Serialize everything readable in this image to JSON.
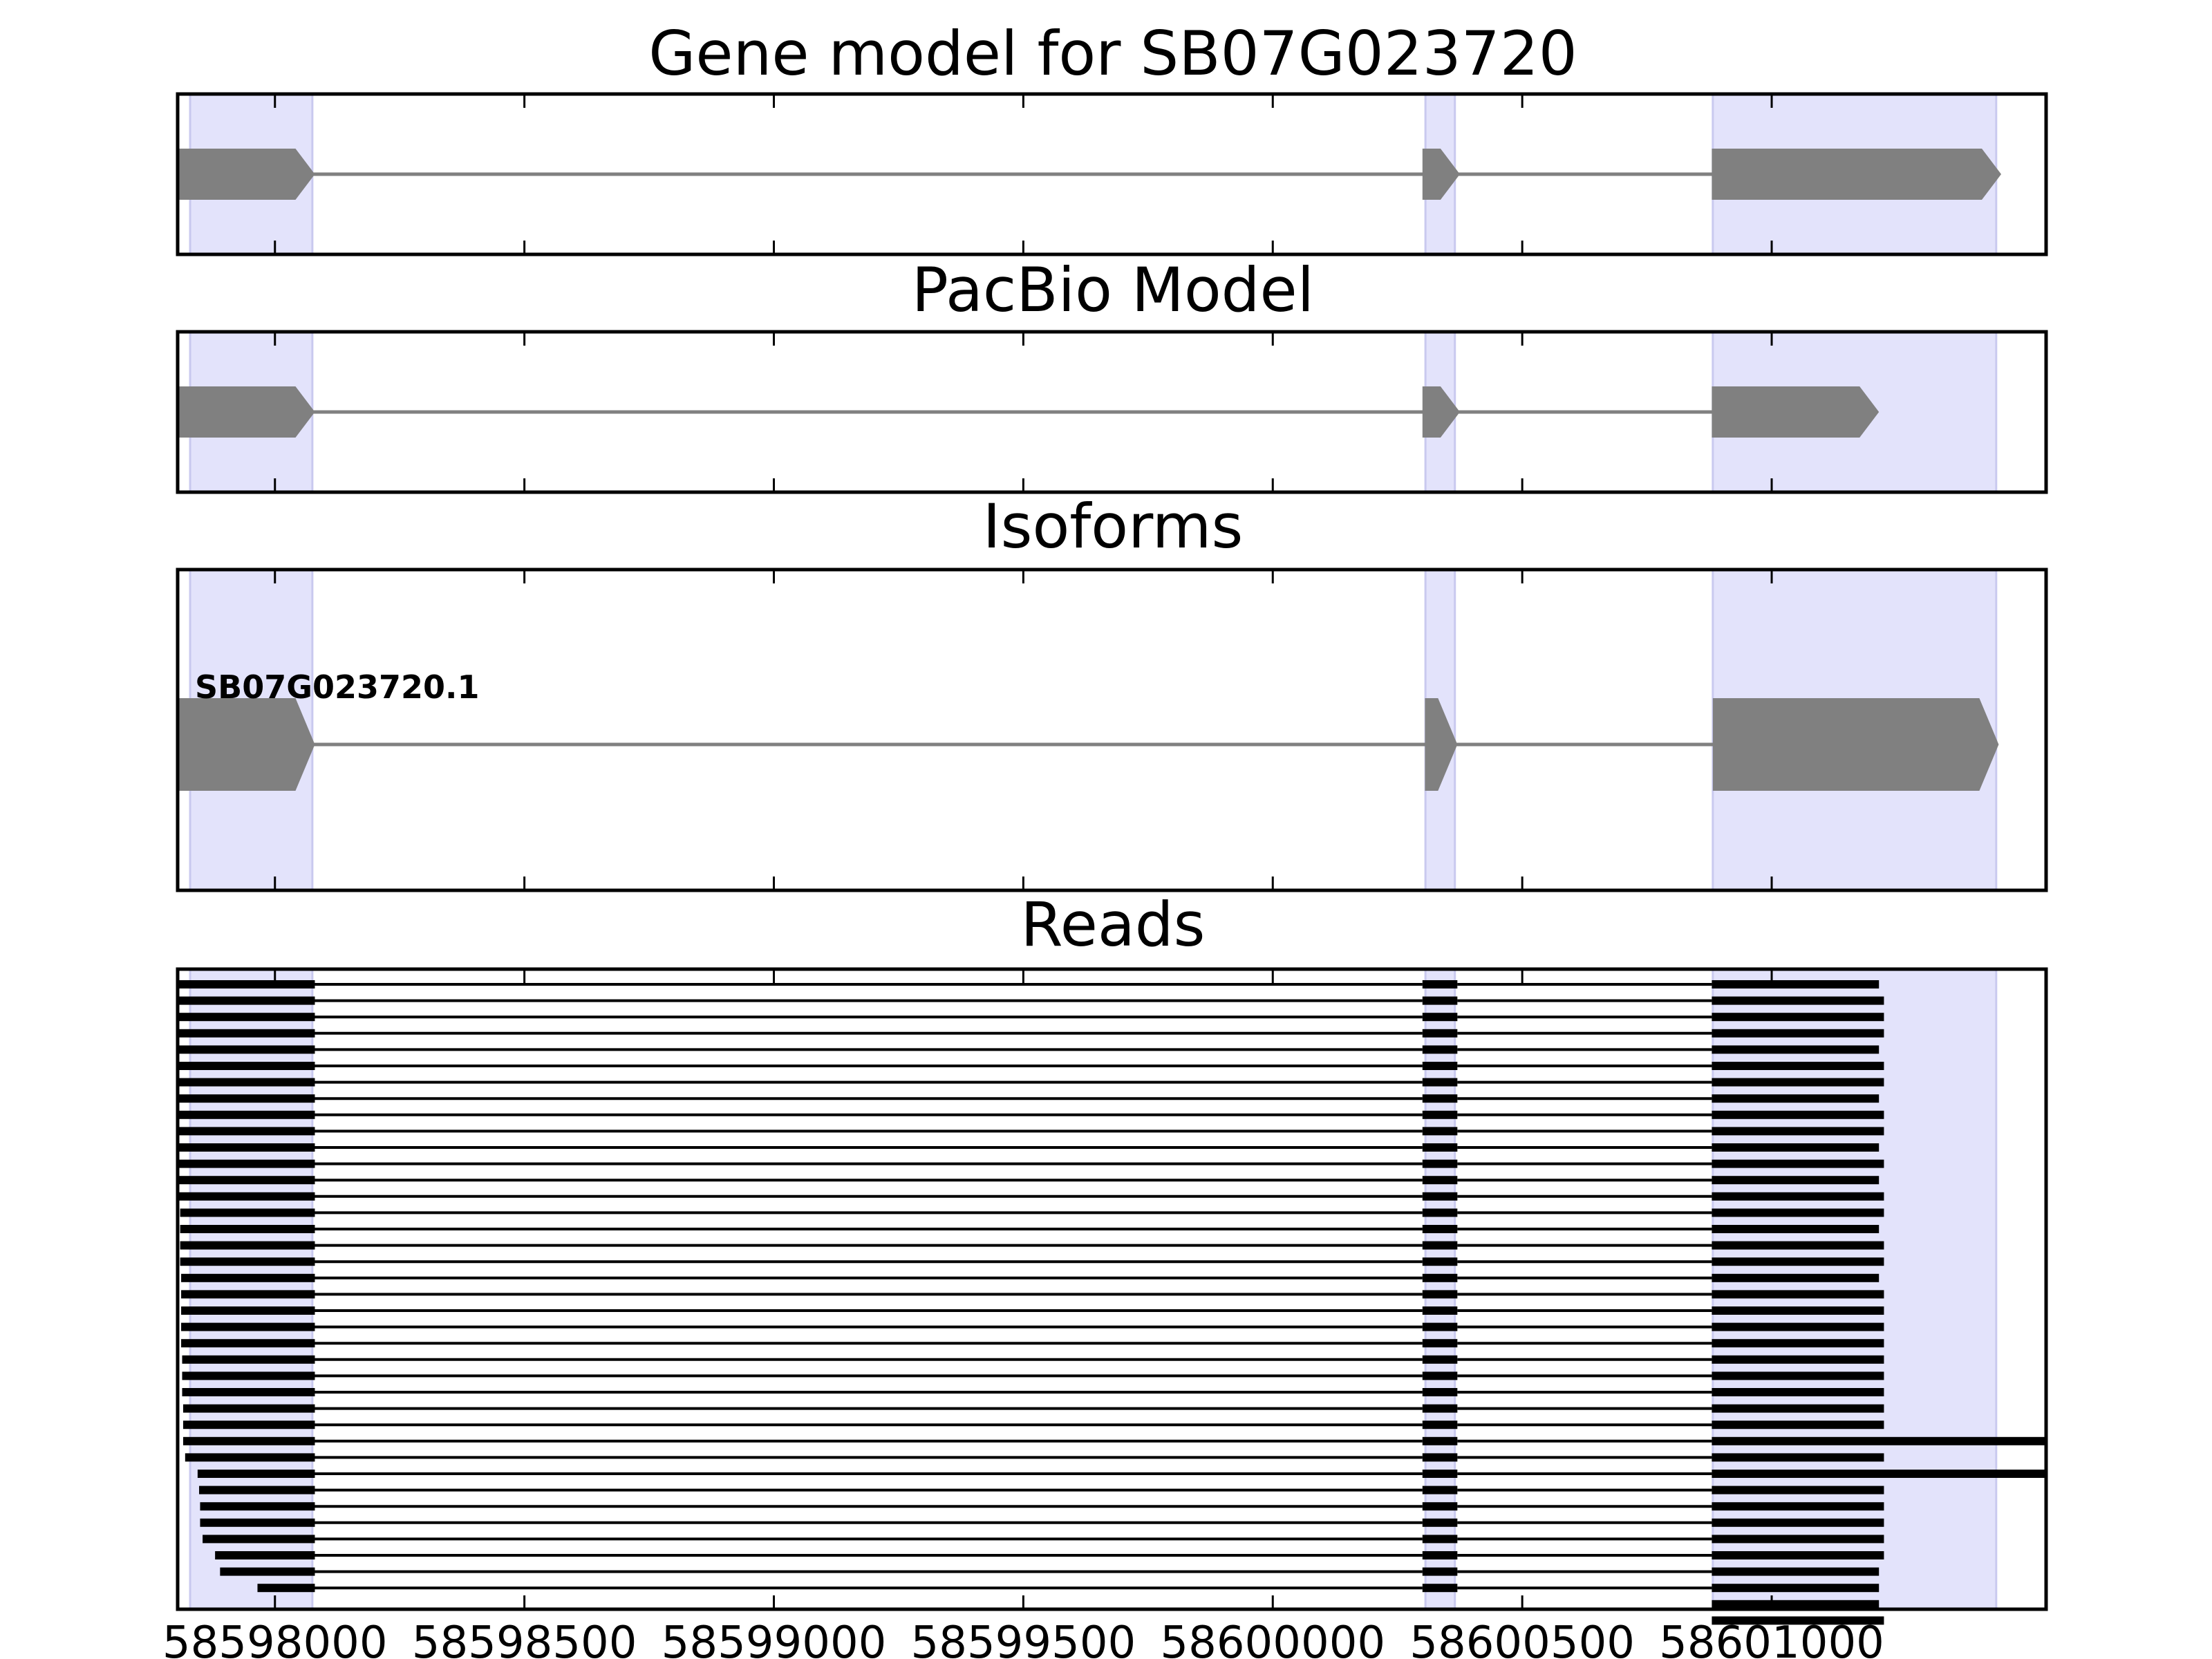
{
  "chart_data": [
    {
      "type": "gene-track",
      "title": "Gene model for SB07G023720",
      "xlim": [
        58597805,
        58601550
      ],
      "highlight_regions": [
        [
          58597830,
          58598075
        ],
        [
          58600306,
          58600365
        ],
        [
          58600882,
          58601450
        ]
      ],
      "features": [
        {
          "exons": [
            [
              58597805,
              58598080
            ],
            [
              58600300,
              58600375
            ],
            [
              58600880,
              58601460
            ]
          ],
          "strand": "+"
        }
      ]
    },
    {
      "type": "gene-track",
      "title": "PacBio Model",
      "xlim": [
        58597805,
        58601550
      ],
      "highlight_regions": [
        [
          58597830,
          58598075
        ],
        [
          58600306,
          58600365
        ],
        [
          58600882,
          58601450
        ]
      ],
      "features": [
        {
          "exons": [
            [
              58597775,
              58598080
            ],
            [
              58600300,
              58600375
            ],
            [
              58600880,
              58601215
            ]
          ],
          "strand": "+"
        }
      ]
    },
    {
      "type": "gene-track",
      "title": "Isoforms",
      "xlim": [
        58597805,
        58601550
      ],
      "highlight_regions": [
        [
          58597830,
          58598075
        ],
        [
          58600306,
          58600365
        ],
        [
          58600882,
          58601450
        ]
      ],
      "features": [
        {
          "label": "SB07G023720.1",
          "exons": [
            [
              58597775,
              58598080
            ],
            [
              58600305,
              58600370
            ],
            [
              58600882,
              58601455
            ]
          ],
          "strand": "+"
        }
      ]
    },
    {
      "type": "reads",
      "title": "Reads",
      "xlabel": "",
      "xlim": [
        58597805,
        58601550
      ],
      "highlight_regions": [
        [
          58597830,
          58598075
        ],
        [
          58600306,
          58600365
        ],
        [
          58600882,
          58601450
        ]
      ],
      "xticks": [
        58598000,
        58598500,
        58599000,
        58599500,
        58600000,
        58600500,
        58601000
      ],
      "xtick_labels": [
        "58598000",
        "58598500",
        "58599000",
        "58599500",
        "58600000",
        "58600500",
        "58601000"
      ],
      "reads": [
        {
          "starts": [
            58597780,
            58600300,
            58600880
          ],
          "ends": [
            58598080,
            58600370,
            58601215
          ]
        },
        {
          "starts": [
            58597800,
            58600300,
            58600880
          ],
          "ends": [
            58598080,
            58600370,
            58601225
          ]
        },
        {
          "starts": [
            58597800,
            58600300,
            58600880
          ],
          "ends": [
            58598080,
            58600370,
            58601225
          ]
        },
        {
          "starts": [
            58597800,
            58600300,
            58600880
          ],
          "ends": [
            58598080,
            58600370,
            58601225
          ]
        },
        {
          "starts": [
            58597800,
            58600300,
            58600880
          ],
          "ends": [
            58598080,
            58600370,
            58601215
          ]
        },
        {
          "starts": [
            58597800,
            58600300,
            58600880
          ],
          "ends": [
            58598080,
            58600370,
            58601225
          ]
        },
        {
          "starts": [
            58597802,
            58600300,
            58600880
          ],
          "ends": [
            58598080,
            58600370,
            58601225
          ]
        },
        {
          "starts": [
            58597802,
            58600300,
            58600880
          ],
          "ends": [
            58598080,
            58600370,
            58601215
          ]
        },
        {
          "starts": [
            58597802,
            58600300,
            58600880
          ],
          "ends": [
            58598080,
            58600370,
            58601225
          ]
        },
        {
          "starts": [
            58597805,
            58600300,
            58600880
          ],
          "ends": [
            58598080,
            58600370,
            58601225
          ]
        },
        {
          "starts": [
            58597805,
            58600300,
            58600880
          ],
          "ends": [
            58598080,
            58600370,
            58601215
          ]
        },
        {
          "starts": [
            58597805,
            58600300,
            58600880
          ],
          "ends": [
            58598080,
            58600370,
            58601225
          ]
        },
        {
          "starts": [
            58597808,
            58600300,
            58600880
          ],
          "ends": [
            58598080,
            58600370,
            58601215
          ]
        },
        {
          "starts": [
            58597808,
            58600300,
            58600880
          ],
          "ends": [
            58598080,
            58600370,
            58601225
          ]
        },
        {
          "starts": [
            58597810,
            58600300,
            58600880
          ],
          "ends": [
            58598080,
            58600370,
            58601225
          ]
        },
        {
          "starts": [
            58597810,
            58600300,
            58600880
          ],
          "ends": [
            58598080,
            58600370,
            58601215
          ]
        },
        {
          "starts": [
            58597810,
            58600300,
            58600880
          ],
          "ends": [
            58598080,
            58600370,
            58601225
          ]
        },
        {
          "starts": [
            58597810,
            58600300,
            58600880
          ],
          "ends": [
            58598080,
            58600370,
            58601225
          ]
        },
        {
          "starts": [
            58597812,
            58600300,
            58600880
          ],
          "ends": [
            58598080,
            58600370,
            58601215
          ]
        },
        {
          "starts": [
            58597812,
            58600300,
            58600880
          ],
          "ends": [
            58598080,
            58600370,
            58601225
          ]
        },
        {
          "starts": [
            58597812,
            58600300,
            58600880
          ],
          "ends": [
            58598080,
            58600370,
            58601225
          ]
        },
        {
          "starts": [
            58597812,
            58600300,
            58600880
          ],
          "ends": [
            58598080,
            58600370,
            58601225
          ]
        },
        {
          "starts": [
            58597812,
            58600300,
            58600880
          ],
          "ends": [
            58598080,
            58600370,
            58601225
          ]
        },
        {
          "starts": [
            58597814,
            58600300,
            58600880
          ],
          "ends": [
            58598080,
            58600370,
            58601225
          ]
        },
        {
          "starts": [
            58597814,
            58600300,
            58600880
          ],
          "ends": [
            58598080,
            58600370,
            58601225
          ]
        },
        {
          "starts": [
            58597814,
            58600300,
            58600880
          ],
          "ends": [
            58598080,
            58600370,
            58601225
          ]
        },
        {
          "starts": [
            58597816,
            58600300,
            58600880
          ],
          "ends": [
            58598080,
            58600370,
            58601225
          ]
        },
        {
          "starts": [
            58597816,
            58600300,
            58600880
          ],
          "ends": [
            58598080,
            58600370,
            58601225
          ]
        },
        {
          "starts": [
            58597816,
            58600300,
            58600880
          ],
          "ends": [
            58598080,
            58600370,
            58601550
          ]
        },
        {
          "starts": [
            58597820,
            58600300,
            58600880
          ],
          "ends": [
            58598080,
            58600370,
            58601225
          ]
        },
        {
          "starts": [
            58597845,
            58600300,
            58600880
          ],
          "ends": [
            58598080,
            58600370,
            58601550
          ]
        },
        {
          "starts": [
            58597848,
            58600300,
            58600880
          ],
          "ends": [
            58598080,
            58600370,
            58601225
          ]
        },
        {
          "starts": [
            58597850,
            58600300,
            58600880
          ],
          "ends": [
            58598080,
            58600370,
            58601225
          ]
        },
        {
          "starts": [
            58597850,
            58600300,
            58600880
          ],
          "ends": [
            58598080,
            58600370,
            58601225
          ]
        },
        {
          "starts": [
            58597855,
            58600300,
            58600880
          ],
          "ends": [
            58598080,
            58600370,
            58601225
          ]
        },
        {
          "starts": [
            58597880,
            58600300,
            58600880
          ],
          "ends": [
            58598080,
            58600370,
            58601225
          ]
        },
        {
          "starts": [
            58597890,
            58600300,
            58600880
          ],
          "ends": [
            58598080,
            58600370,
            58601215
          ]
        },
        {
          "starts": [
            58597965,
            58600300,
            58600880
          ],
          "ends": [
            58598080,
            58600370,
            58601215
          ]
        },
        {
          "starts": [
            58600880
          ],
          "ends": [
            58601215
          ]
        },
        {
          "starts": [
            58600880
          ],
          "ends": [
            58601225
          ]
        }
      ]
    }
  ]
}
